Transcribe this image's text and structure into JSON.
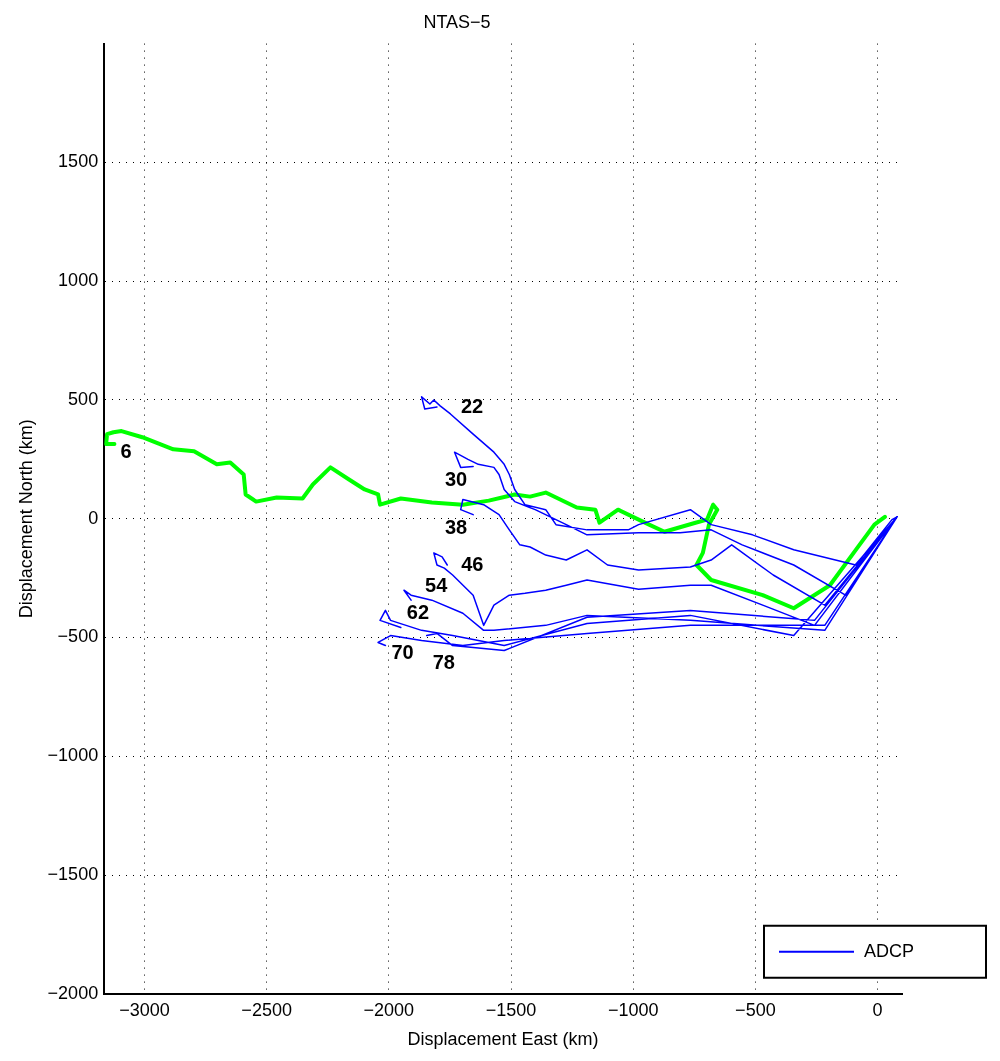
{
  "chart_data": {
    "type": "line",
    "title": "NTAS−5",
    "xlabel": "Displacement East (km)",
    "ylabel": "Displacement North (km)",
    "xlim": [
      -3165,
      100
    ],
    "ylim": [
      -2000,
      2000
    ],
    "xticks": [
      {
        "value": -3000,
        "label": "−3000"
      },
      {
        "value": -2500,
        "label": "−2500"
      },
      {
        "value": -2000,
        "label": "−2000"
      },
      {
        "value": -1500,
        "label": "−1500"
      },
      {
        "value": -1000,
        "label": "−1000"
      },
      {
        "value": -500,
        "label": "−500"
      },
      0
    ],
    "yticks": [
      {
        "value": -2000,
        "label": "−2000"
      },
      {
        "value": -1500,
        "label": "−1500"
      },
      {
        "value": -1000,
        "label": "−1000"
      },
      {
        "value": -500,
        "label": "−500"
      },
      0,
      500,
      1000,
      1500
    ],
    "grid": true,
    "legend": "bottom right",
    "marker": "none",
    "line_style": "solid",
    "annotations": [
      {
        "text": "6",
        "x": -3123,
        "y": 314
      },
      {
        "text": "22",
        "x": -1803,
        "y": 470
      },
      {
        "text": "30",
        "x": -1655,
        "y": 220
      },
      {
        "text": "38",
        "x": -1655,
        "y": 17
      },
      {
        "text": "46",
        "x": -1761,
        "y": -195
      },
      {
        "text": "54",
        "x": -1909,
        "y": -343
      },
      {
        "text": "62",
        "x": -1951,
        "y": -458
      },
      {
        "text": "70",
        "x": -2014,
        "y": -534
      },
      {
        "text": "78",
        "x": -1845,
        "y": -492
      }
    ],
    "series": [
      {
        "name": "ADCP",
        "color": "#0000ff",
        "x": [
          80,
          59,
          -89,
          -343,
          -512,
          -681,
          -766,
          -978,
          -1020,
          -1189,
          -1316,
          -1358,
          -1443,
          -1485,
          -1507,
          -1528,
          -1570,
          -1655,
          -1748,
          -1790,
          -1816,
          -1832,
          -1866,
          -1853,
          -1803,
          null,
          80,
          -131,
          -343,
          -554,
          -681,
          -808,
          -978,
          -1189,
          -1274,
          -1401,
          -1485,
          -1528,
          -1549,
          -1570,
          -1634,
          -1676,
          -1731,
          -1706,
          -1655,
          null,
          80,
          -216,
          -427,
          -597,
          -681,
          -766,
          -978,
          -1105,
          -1189,
          -1274,
          -1358,
          -1422,
          -1464,
          -1507,
          -1549,
          -1612,
          -1697,
          -1706,
          -1655,
          null,
          80,
          -258,
          -470,
          -681,
          -766,
          -978,
          -1189,
          -1274,
          -1358,
          -1443,
          -1507,
          -1570,
          -1591,
          -1612,
          -1655,
          -1739,
          -1773,
          -1803,
          -1816,
          -1782,
          -1761,
          null,
          80,
          -216,
          -766,
          -1189,
          -1358,
          -1570,
          -1612,
          -1697,
          -1824,
          -1909,
          -1938,
          -1909,
          null,
          80,
          -343,
          -766,
          -1189,
          -1528,
          -1739,
          -1866,
          -1993,
          -2014,
          -2036,
          -1951,
          null,
          80,
          -216,
          -766,
          -1189,
          -1528,
          -1697,
          -1866,
          -1993,
          -2044,
          -2014,
          null,
          80,
          -258,
          -766,
          -1189,
          -1528,
          -1739,
          -1803,
          -1845
        ],
        "values": [
          8,
          -4,
          -195,
          -131,
          -68,
          -25,
          38,
          -25,
          -47,
          -47,
          -25,
          38,
          59,
          123,
          186,
          229,
          280,
          356,
          441,
          475,
          500,
          483,
          513,
          462,
          470,
          null,
          8,
          -322,
          -195,
          -110,
          -47,
          -59,
          -59,
          -68,
          -25,
          38,
          72,
          123,
          186,
          216,
          229,
          250,
          280,
          216,
          220,
          null,
          8,
          -364,
          -237,
          -110,
          -174,
          -203,
          -216,
          -195,
          -131,
          -174,
          -153,
          -119,
          -110,
          -47,
          17,
          59,
          81,
          38,
          17,
          null,
          8,
          -449,
          -364,
          -280,
          -280,
          -297,
          -258,
          -280,
          -301,
          -314,
          -322,
          -364,
          -407,
          -449,
          -322,
          -237,
          -208,
          -195,
          -144,
          -161,
          -195,
          null,
          8,
          -470,
          -428,
          -407,
          -449,
          -470,
          -470,
          -398,
          -343,
          -322,
          -301,
          -343,
          null,
          8,
          -492,
          -407,
          -441,
          -534,
          -492,
          -470,
          -428,
          -386,
          -428,
          -458,
          null,
          8,
          -449,
          -449,
          -483,
          -513,
          -534,
          -513,
          -492,
          -521,
          -534,
          null,
          8,
          -428,
          -386,
          -415,
          -555,
          -534,
          -483,
          -492
        ]
      },
      {
        "color": "#00ff00",
        "x": [
          30,
          -13,
          -89,
          -195,
          -343,
          -470,
          -681,
          -741,
          -715,
          -690,
          -656,
          -673,
          -698,
          -745,
          -872,
          -935,
          -1062,
          -1138,
          -1155,
          -1231,
          -1358,
          -1422,
          -1485,
          -1591,
          -1697,
          -1824,
          -1951,
          -2036,
          -2044,
          -2099,
          -2163,
          -2239,
          -2311,
          -2353,
          -2459,
          -2543,
          -2586,
          -2594,
          -2649,
          -2704,
          -2797,
          -2882,
          -3009,
          -3094,
          -3127,
          -3153,
          -3157,
          -3123
        ],
        "values": [
          8,
          -25,
          -131,
          -280,
          -377,
          -322,
          -258,
          -195,
          -144,
          -25,
          38,
          59,
          -4,
          -17,
          -55,
          -25,
          38,
          -17,
          38,
          47,
          110,
          93,
          102,
          76,
          59,
          68,
          85,
          59,
          102,
          123,
          165,
          216,
          144,
          85,
          89,
          72,
          102,
          186,
          237,
          229,
          284,
          292,
          343,
          369,
          364,
          356,
          314,
          314
        ]
      }
    ]
  }
}
